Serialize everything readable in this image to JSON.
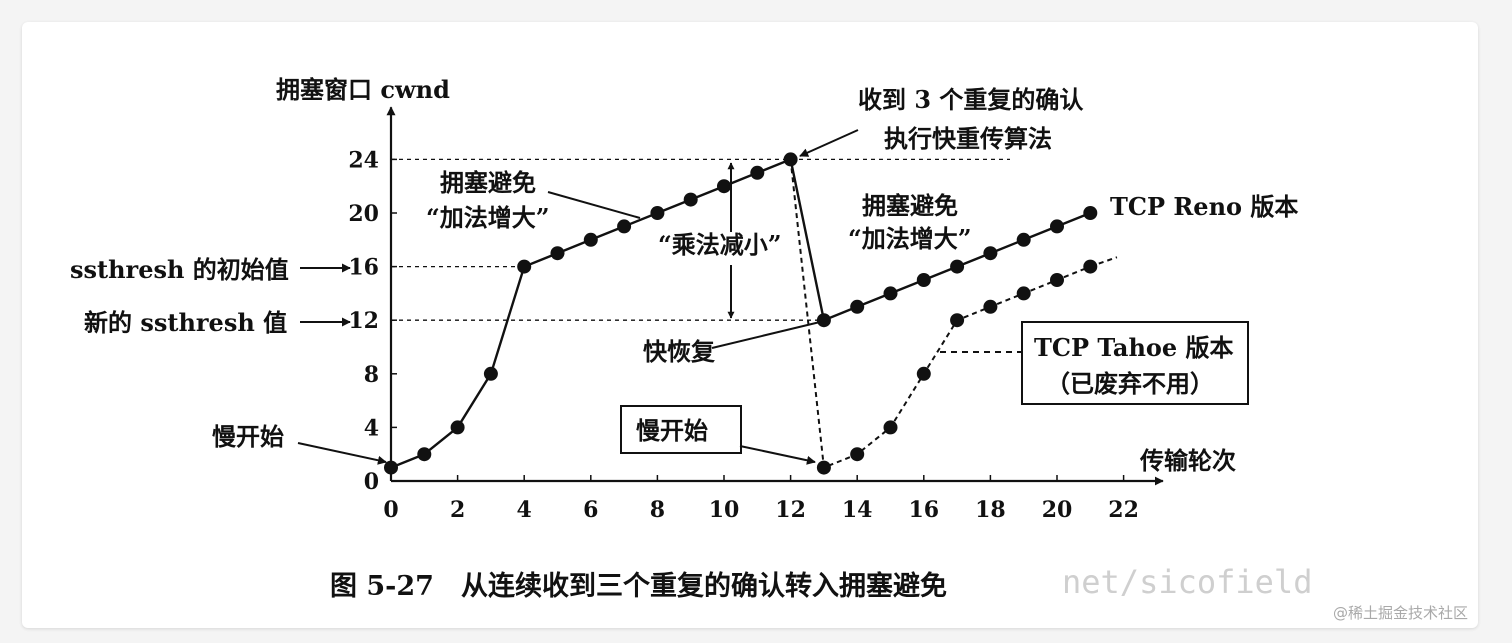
{
  "chart_data": {
    "type": "line",
    "ylabel": "拥塞窗口 cwnd",
    "xlabel": "传输轮次",
    "x_ticks": [
      0,
      2,
      4,
      6,
      8,
      10,
      12,
      14,
      16,
      18,
      20,
      22
    ],
    "y_ticks": [
      0,
      4,
      8,
      12,
      16,
      20,
      24
    ],
    "xlim": [
      0,
      23
    ],
    "ylim": [
      0,
      27
    ],
    "grid": false,
    "series": [
      {
        "name": "TCP Reno 版本",
        "style": "solid",
        "x": [
          0,
          1,
          2,
          3,
          4,
          5,
          6,
          7,
          8,
          9,
          10,
          11,
          12,
          13,
          14,
          15,
          16,
          17,
          18,
          19,
          20,
          21
        ],
        "y": [
          1,
          2,
          4,
          8,
          16,
          17,
          18,
          19,
          20,
          21,
          22,
          23,
          24,
          12,
          13,
          14,
          15,
          16,
          17,
          18,
          19,
          20
        ]
      },
      {
        "name": "TCP Tahoe 版本",
        "style": "dashed",
        "x": [
          12,
          13,
          14,
          15,
          16,
          17,
          18,
          19,
          20,
          21
        ],
        "y": [
          24,
          1,
          2,
          4,
          8,
          12,
          13,
          14,
          15,
          16
        ]
      }
    ],
    "annotations": {
      "fast_retransmit": [
        "收到 3 个重复的确认",
        "执行快重传算法"
      ],
      "ca1": [
        "拥塞避免",
        "“加法增大”"
      ],
      "ca2": [
        "拥塞避免",
        "“加法增大”"
      ],
      "md": "“乘法减小”",
      "ssthresh_init": "ssthresh 的初始值",
      "ssthresh_new": "新的 ssthresh 值",
      "fast_recovery": "快恢复",
      "slow_start_1": "慢开始",
      "slow_start_2": "慢开始",
      "reno": "TCP Reno 版本",
      "tahoe": [
        "TCP Tahoe 版本",
        "（已废弃不用）"
      ]
    }
  },
  "caption": "图 5-27　从连续收到三个重复的确认转入拥塞避免",
  "watermark": "net/sicofield",
  "site_mark": "@稀土掘金技术社区"
}
